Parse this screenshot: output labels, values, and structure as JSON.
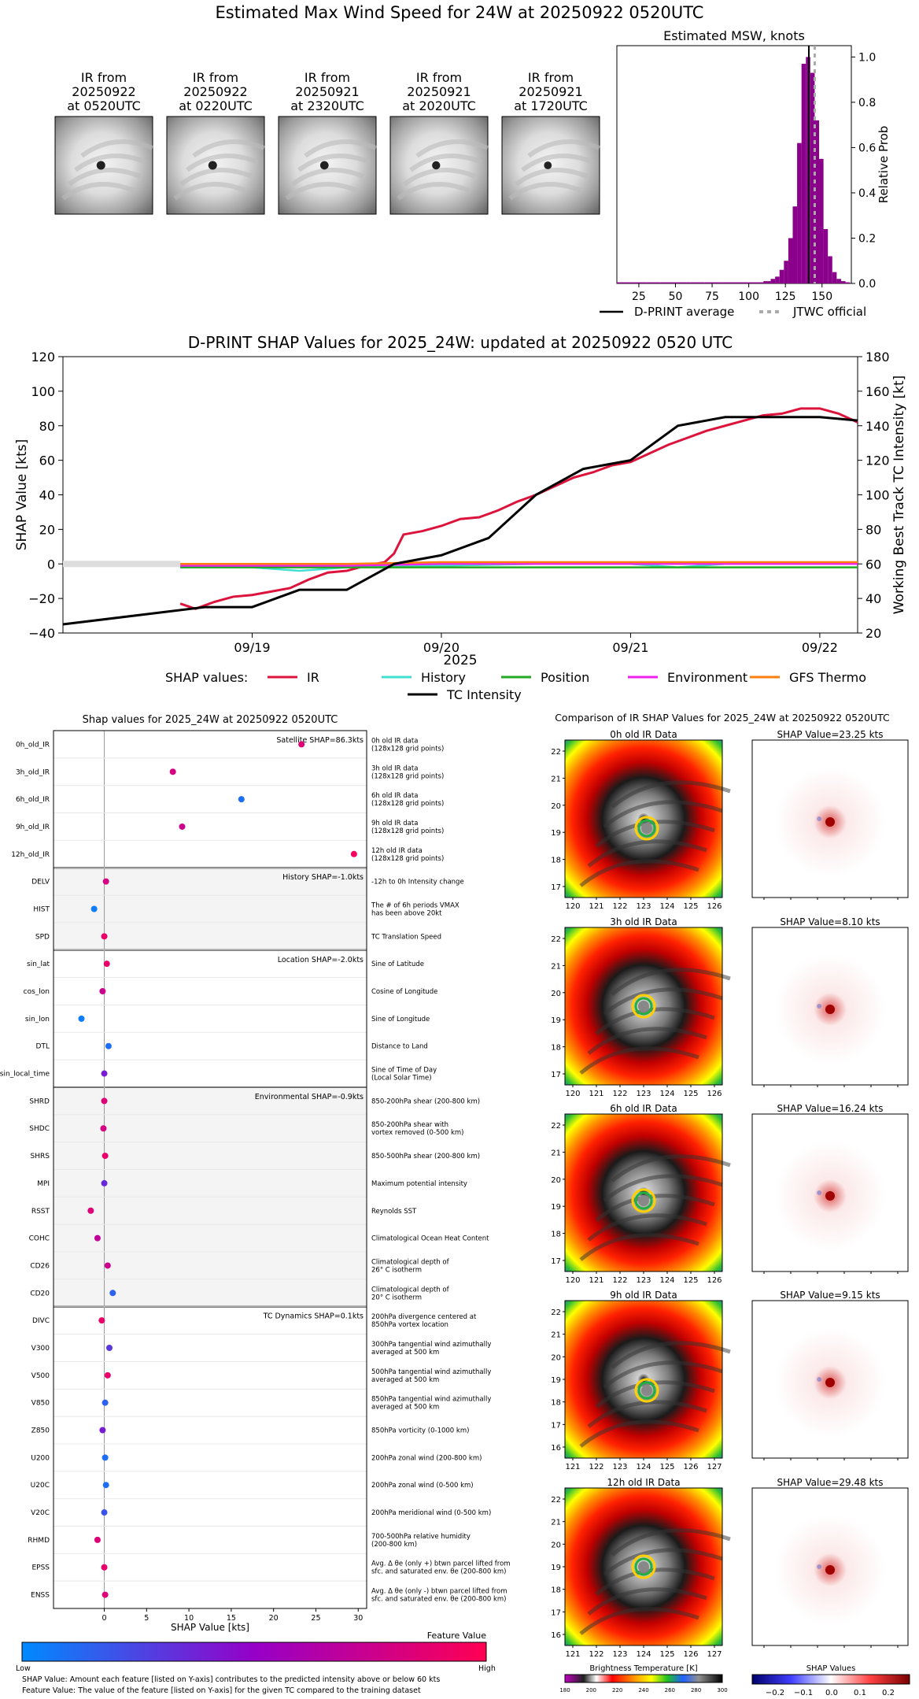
{
  "page": {
    "title": "Estimated Max Wind Speed for 24W at 20250922 0520UTC"
  },
  "ir_thumbs": [
    {
      "label": "IR from\n20250922\nat 0520UTC",
      "eye": 0.5
    },
    {
      "label": "IR from\n20250922\nat 0220UTC",
      "eye": 0.5
    },
    {
      "label": "IR from\n20250921\nat 2320UTC",
      "eye": 0.45
    },
    {
      "label": "IR from\n20250921\nat 2020UTC",
      "eye": 0.4
    },
    {
      "label": "IR from\n20250921\nat 1720UTC",
      "eye": 0.3
    }
  ],
  "msw": {
    "title": "Estimated MSW, knots",
    "ylabel": "Relative Prob",
    "xticks": [
      "25",
      "50",
      "75",
      "100",
      "125",
      "150"
    ],
    "yticks": [
      "0.0",
      "0.2",
      "0.4",
      "0.6",
      "0.8",
      "1.0"
    ],
    "legend_dprint": "D-PRINT average",
    "legend_jtwc": "JTWC official"
  },
  "shap_ts": {
    "title": "D-PRINT SHAP Values for 2025_24W: updated at 20250922 0520 UTC",
    "ylabel_left": "SHAP Value [kts]",
    "ylabel_right": "Working Best Track TC Intensity [kt]",
    "xlabel": "2025",
    "xticks": [
      "09/19",
      "09/20",
      "09/21",
      "09/22"
    ],
    "yticks_left": [
      "120",
      "100",
      "80",
      "60",
      "40",
      "20",
      "0",
      "−20",
      "−40"
    ],
    "yticks_right": [
      "180",
      "160",
      "140",
      "120",
      "100",
      "80",
      "60",
      "40",
      "20"
    ],
    "legend_title": "SHAP values:",
    "legend": [
      "IR",
      "History",
      "Position",
      "Environment",
      "GFS Thermo",
      "TC Intensity"
    ]
  },
  "chart_data": [
    {
      "type": "bar",
      "title": "Estimated MSW, knots",
      "xlabel": "",
      "ylabel": "Relative Prob",
      "xlim": [
        10,
        170
      ],
      "ylim": [
        0,
        1.05
      ],
      "categories": [
        10,
        20,
        30,
        40,
        50,
        60,
        70,
        80,
        90,
        100,
        105,
        110,
        115,
        118,
        121,
        124,
        127,
        130,
        133,
        136,
        139,
        142,
        145,
        148,
        151,
        154,
        157,
        160,
        163,
        166
      ],
      "values": [
        0.005,
        0.005,
        0.005,
        0.005,
        0.005,
        0.005,
        0.005,
        0.005,
        0.005,
        0.005,
        0.005,
        0.01,
        0.02,
        0.03,
        0.06,
        0.1,
        0.2,
        0.34,
        0.62,
        0.97,
        1.0,
        0.93,
        0.72,
        0.55,
        0.24,
        0.12,
        0.05,
        0.02,
        0.01,
        0.005
      ],
      "dprint_average": 141,
      "jtwc_official": 145
    },
    {
      "type": "line",
      "title": "D-PRINT SHAP Values for 2025_24W: updated at 20250922 0520 UTC",
      "xlabel": "2025",
      "ylabel": "SHAP Value [kts]",
      "ylim": [
        -40,
        120
      ],
      "y2lim": [
        20,
        180
      ],
      "series": [
        {
          "name": "IR",
          "x": [
            18.62,
            18.7,
            18.8,
            18.9,
            19.0,
            19.1,
            19.2,
            19.3,
            19.4,
            19.5,
            19.6,
            19.7,
            19.75,
            19.8,
            19.9,
            20.0,
            20.1,
            20.2,
            20.3,
            20.4,
            20.5,
            20.6,
            20.7,
            20.8,
            20.9,
            21.0,
            21.1,
            21.2,
            21.3,
            21.4,
            21.5,
            21.6,
            21.7,
            21.8,
            21.9,
            22.0,
            22.1,
            22.2
          ],
          "values": [
            -23,
            -26,
            -22,
            -19,
            -18,
            -16,
            -14,
            -9,
            -5,
            -4,
            -1,
            1,
            6,
            17,
            19,
            22,
            26,
            27,
            31,
            36,
            40,
            45,
            50,
            53,
            57,
            59,
            64,
            69,
            73,
            77,
            80,
            83,
            86,
            87,
            90,
            90,
            87,
            82
          ]
        },
        {
          "name": "History",
          "x": [
            18.62,
            19.0,
            19.25,
            19.5,
            19.75,
            20.0,
            20.5,
            21.0,
            21.25,
            21.5,
            22.0,
            22.2
          ],
          "values": [
            -2,
            -2,
            -4,
            -2,
            -1,
            -1,
            0,
            0,
            -2,
            0,
            0,
            0
          ]
        },
        {
          "name": "Position",
          "x": [
            18.62,
            19.0,
            19.5,
            20.0,
            20.5,
            21.0,
            21.5,
            22.0,
            22.2
          ],
          "values": [
            -2,
            -2,
            -2,
            -2,
            -2,
            -2,
            -2,
            -2,
            -2
          ]
        },
        {
          "name": "Environment",
          "x": [
            18.62,
            19.0,
            19.5,
            20.0,
            20.5,
            21.0,
            21.5,
            22.0,
            22.2
          ],
          "values": [
            -1,
            -1,
            -1,
            0,
            0,
            0,
            0,
            0,
            0
          ]
        },
        {
          "name": "GFS Thermo",
          "x": [
            18.62,
            19.0,
            19.5,
            20.0,
            20.5,
            21.0,
            21.5,
            22.0,
            22.2
          ],
          "values": [
            0,
            0,
            0,
            1,
            1,
            1,
            1,
            1,
            1
          ]
        },
        {
          "name": "TC Intensity",
          "axis": "right",
          "x": [
            18.0,
            18.75,
            19.0,
            19.25,
            19.5,
            19.75,
            20.0,
            20.25,
            20.5,
            20.75,
            21.0,
            21.25,
            21.5,
            21.75,
            22.0,
            22.2
          ],
          "values": [
            25,
            35,
            35,
            45,
            45,
            60,
            65,
            75,
            100,
            115,
            120,
            140,
            145,
            145,
            145,
            143
          ]
        }
      ]
    },
    {
      "type": "scatter",
      "title": "Shap values for 2025_24W at 20250922 0520UTC",
      "xlabel": "SHAP Value [kts]",
      "xlim": [
        -6,
        31
      ],
      "xticks": [
        "0",
        "5",
        "10",
        "15",
        "20",
        "25",
        "30"
      ],
      "groups": [
        {
          "name": "Satellite SHAP=86.3kts",
          "shaded": false
        },
        {
          "name": "History SHAP=-1.0kts",
          "shaded": true
        },
        {
          "name": "Location SHAP=-2.0kts",
          "shaded": false
        },
        {
          "name": "Environmental SHAP=-0.9kts",
          "shaded": true
        },
        {
          "name": "TC Dynamics SHAP=0.1kts",
          "shaded": false
        }
      ],
      "features": [
        {
          "name": "0h_old_IR",
          "desc": "0h old IR data\n(128x128 grid points)",
          "shap": 23.3,
          "fv": 0.85,
          "group": 0
        },
        {
          "name": "3h_old_IR",
          "desc": "3h old IR data\n(128x128 grid points)",
          "shap": 8.1,
          "fv": 0.8,
          "group": 0
        },
        {
          "name": "6h_old_IR",
          "desc": "6h old IR data\n(128x128 grid points)",
          "shap": 16.2,
          "fv": 0.1,
          "group": 0
        },
        {
          "name": "9h_old_IR",
          "desc": "9h old IR data\n(128x128 grid points)",
          "shap": 9.2,
          "fv": 0.75,
          "group": 0
        },
        {
          "name": "12h_old_IR",
          "desc": "12h old IR data\n(128x128 grid points)",
          "shap": 29.5,
          "fv": 0.95,
          "group": 0
        },
        {
          "name": "DELV",
          "desc": "-12h to 0h Intensity change",
          "shap": 0.2,
          "fv": 0.8,
          "group": 1
        },
        {
          "name": "HIST",
          "desc": "The # of 6h periods VMAX\nhas been above 20kt",
          "shap": -1.2,
          "fv": 0.05,
          "group": 1
        },
        {
          "name": "SPD",
          "desc": "TC Translation Speed",
          "shap": 0.0,
          "fv": 0.9,
          "group": 1
        },
        {
          "name": "sin_lat",
          "desc": "Sine of Latitude",
          "shap": 0.3,
          "fv": 0.9,
          "group": 2
        },
        {
          "name": "cos_lon",
          "desc": "Cosine of Longitude",
          "shap": -0.2,
          "fv": 0.75,
          "group": 2
        },
        {
          "name": "sin_lon",
          "desc": "Sine of Longitude",
          "shap": -2.7,
          "fv": 0.05,
          "group": 2
        },
        {
          "name": "DTL",
          "desc": "Distance to Land",
          "shap": 0.5,
          "fv": 0.1,
          "group": 2
        },
        {
          "name": "sin_local_time",
          "desc": "Sine of Time of Day\n(Local Solar Time)",
          "shap": 0.0,
          "fv": 0.4,
          "group": 2
        },
        {
          "name": "SHRD",
          "desc": "850-200hPa shear (200-800 km)",
          "shap": 0.0,
          "fv": 0.85,
          "group": 3
        },
        {
          "name": "SHDC",
          "desc": "850-200hPa shear with\nvortex removed (0-500 km)",
          "shap": -0.1,
          "fv": 0.8,
          "group": 3
        },
        {
          "name": "SHRS",
          "desc": "850-500hPa shear (200-800 km)",
          "shap": 0.1,
          "fv": 0.9,
          "group": 3
        },
        {
          "name": "MPI",
          "desc": "Maximum potential intensity",
          "shap": 0.0,
          "fv": 0.35,
          "group": 3
        },
        {
          "name": "RSST",
          "desc": "Reynolds SST",
          "shap": -1.6,
          "fv": 0.85,
          "group": 3
        },
        {
          "name": "COHC",
          "desc": "Climatological Ocean Heat Content",
          "shap": -0.8,
          "fv": 0.7,
          "group": 3
        },
        {
          "name": "CD26",
          "desc": "Climatological depth of\n26° C isotherm",
          "shap": 0.4,
          "fv": 0.75,
          "group": 3
        },
        {
          "name": "CD20",
          "desc": "Climatological depth of\n20° C isotherm",
          "shap": 1.0,
          "fv": 0.15,
          "group": 3
        },
        {
          "name": "DIVC",
          "desc": "200hPa divergence centered at\n850hPa vortex location",
          "shap": -0.3,
          "fv": 0.9,
          "group": 4
        },
        {
          "name": "V300",
          "desc": "300hPa tangential wind azimuthally\naveraged at 500 km",
          "shap": 0.6,
          "fv": 0.3,
          "group": 4
        },
        {
          "name": "V500",
          "desc": "500hPa tangential wind azimuthally\naveraged at 500 km",
          "shap": 0.4,
          "fv": 0.9,
          "group": 4
        },
        {
          "name": "V850",
          "desc": "850hPa tangential wind azimuthally\naveraged at 500 km",
          "shap": 0.1,
          "fv": 0.15,
          "group": 4
        },
        {
          "name": "Z850",
          "desc": "850hPa vorticity (0-1000 km)",
          "shap": -0.2,
          "fv": 0.4,
          "group": 4
        },
        {
          "name": "U200",
          "desc": "200hPa zonal wind (200-800 km)",
          "shap": 0.1,
          "fv": 0.1,
          "group": 4
        },
        {
          "name": "U20C",
          "desc": "200hPa zonal wind (0-500 km)",
          "shap": 0.2,
          "fv": 0.1,
          "group": 4
        },
        {
          "name": "V20C",
          "desc": "200hPa meridional wind (0-500 km)",
          "shap": 0.0,
          "fv": 0.2,
          "group": 4
        },
        {
          "name": "RHMD",
          "desc": "700-500hPa relative humidity\n(200-800 km)",
          "shap": -0.8,
          "fv": 0.85,
          "group": 4
        },
        {
          "name": "EPSS",
          "desc": "Avg. Δ θe (only +) btwn parcel lifted from\nsfc. and saturated env. θe (200-800 km)",
          "shap": 0.0,
          "fv": 0.9,
          "group": 4
        },
        {
          "name": "ENSS",
          "desc": "Avg. Δ θe (only -) btwn parcel lifted from\nsfc. and saturated env. θe (200-800 km)",
          "shap": 0.1,
          "fv": 0.85,
          "group": 4
        }
      ]
    }
  ],
  "scatter_panel": {
    "title": "Shap values for 2025_24W at 20250922 0520UTC",
    "xlabel": "SHAP Value [kts]",
    "colorbar_title": "Feature Value",
    "colorbar_low": "Low",
    "colorbar_high": "High",
    "note1": "SHAP Value: Amount each feature [listed on Y-axis] contributes to the predicted intensity above or below 60 kts",
    "note2": "Feature Value: The value of the feature [listed on Y-axis] for the given TC compared to the training dataset"
  },
  "ir_compare": {
    "title": "Comparison of IR SHAP Values for 2025_24W at 20250922 0520UTC",
    "rows": [
      {
        "label": "0h old IR Data",
        "shap_label": "SHAP Value=23.25 kts",
        "xticks": [
          "120",
          "121",
          "122",
          "123",
          "124",
          "125",
          "126"
        ],
        "yticks": [
          "22",
          "21",
          "20",
          "19",
          "18",
          "17"
        ],
        "cx": 0.52,
        "cy": 0.56
      },
      {
        "label": "3h old IR Data",
        "shap_label": "SHAP Value=8.10 kts",
        "xticks": [
          "120",
          "121",
          "122",
          "123",
          "124",
          "125",
          "126"
        ],
        "yticks": [
          "22",
          "21",
          "20",
          "19",
          "18",
          "17"
        ],
        "cx": 0.5,
        "cy": 0.5
      },
      {
        "label": "6h old IR Data",
        "shap_label": "SHAP Value=16.24 kts",
        "xticks": [
          "120",
          "121",
          "122",
          "123",
          "124",
          "125",
          "126"
        ],
        "yticks": [
          "22",
          "21",
          "20",
          "19",
          "18",
          "17"
        ],
        "cx": 0.5,
        "cy": 0.55
      },
      {
        "label": "9h old IR Data",
        "shap_label": "SHAP Value=9.15 kts",
        "xticks": [
          "121",
          "122",
          "123",
          "124",
          "125",
          "126",
          "127"
        ],
        "yticks": [
          "22",
          "21",
          "20",
          "19",
          "18",
          "17",
          "16"
        ],
        "cx": 0.52,
        "cy": 0.57
      },
      {
        "label": "12h old IR Data",
        "shap_label": "SHAP Value=29.48 kts",
        "xticks": [
          "121",
          "122",
          "123",
          "124",
          "125",
          "126",
          "127"
        ],
        "yticks": [
          "22",
          "21",
          "20",
          "19",
          "18",
          "17",
          "16"
        ],
        "cx": 0.5,
        "cy": 0.5
      }
    ],
    "bt_title": "Brightness Temperature [K]",
    "bt_ticks": [
      "180",
      "200",
      "220",
      "240",
      "260",
      "280",
      "300"
    ],
    "sv_title": "SHAP Values",
    "sv_ticks": [
      "−0.2",
      "−0.1",
      "0.0",
      "0.1",
      "0.2"
    ]
  }
}
